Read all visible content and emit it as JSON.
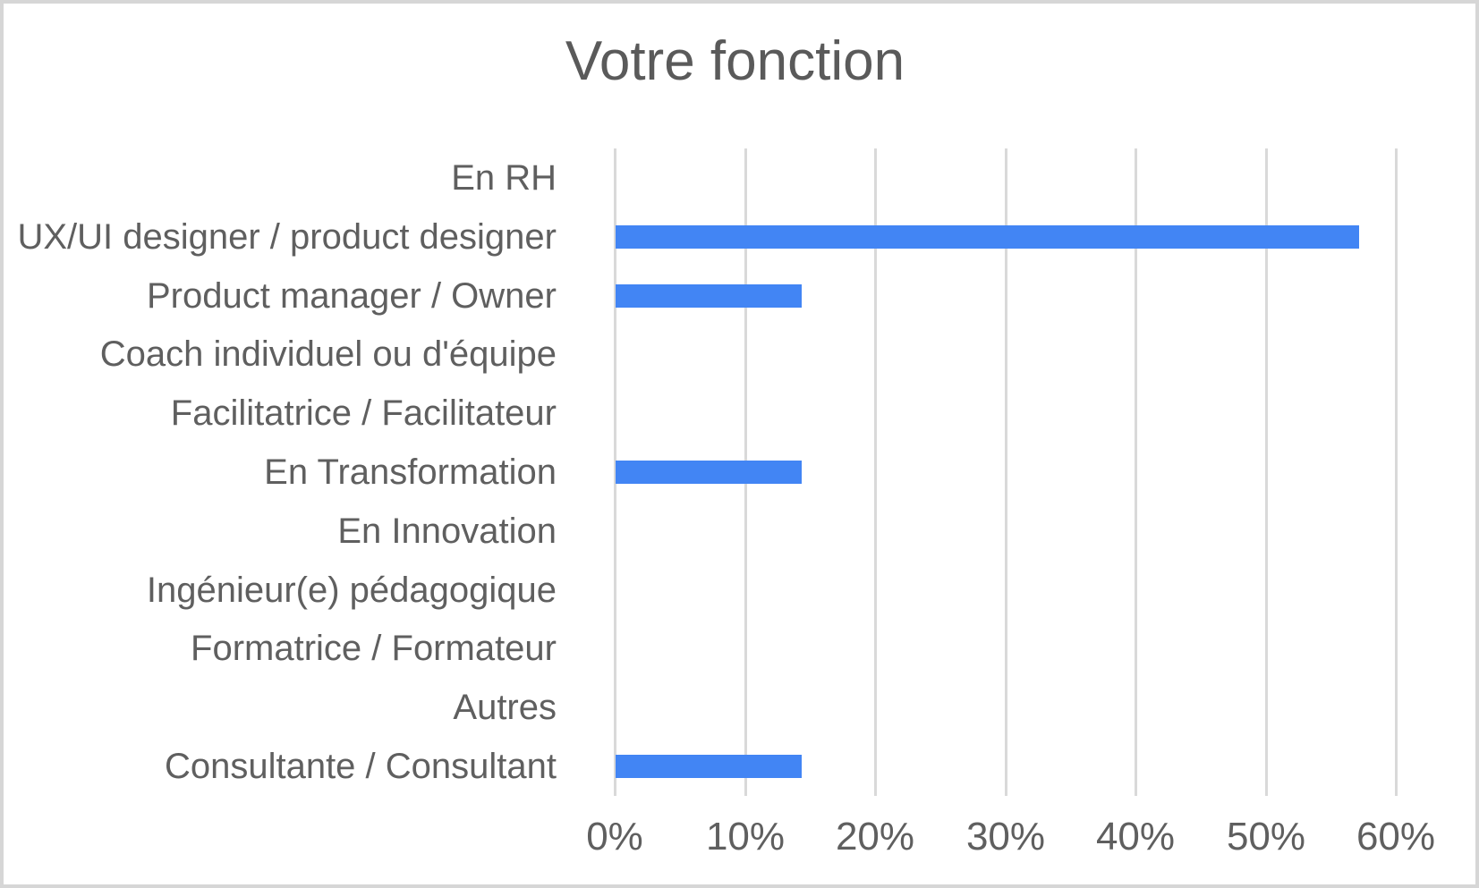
{
  "chart_data": {
    "type": "bar",
    "orientation": "horizontal",
    "title": "Votre fonction",
    "categories": [
      "En RH",
      "UX/UI designer / product designer",
      "Product manager / Owner",
      "Coach individuel ou d'équipe",
      "Facilitatrice / Facilitateur",
      "En Transformation",
      "En Innovation",
      "Ingénieur(e) pédagogique",
      "Formatrice / Formateur",
      "Autres",
      "Consultante / Consultant"
    ],
    "values": [
      0,
      57.1,
      14.3,
      0,
      0,
      14.3,
      0,
      0,
      0,
      0,
      14.3
    ],
    "value_unit": "%",
    "xlabel": "",
    "ylabel": "",
    "xlim": [
      0,
      60
    ],
    "x_tick_labels": [
      "0%",
      "10%",
      "20%",
      "30%",
      "40%",
      "50%",
      "60%"
    ],
    "x_tick_values": [
      0,
      10,
      20,
      30,
      40,
      50,
      60
    ],
    "grid": true,
    "legend": false,
    "colors": {
      "bar_fill": "#4285f4",
      "gridline": "#d9d9d9",
      "title_text": "#5a5a5a",
      "axis_text": "#5f5f5f",
      "background": "#ffffff",
      "frame_border": "#d6d6d6"
    }
  }
}
